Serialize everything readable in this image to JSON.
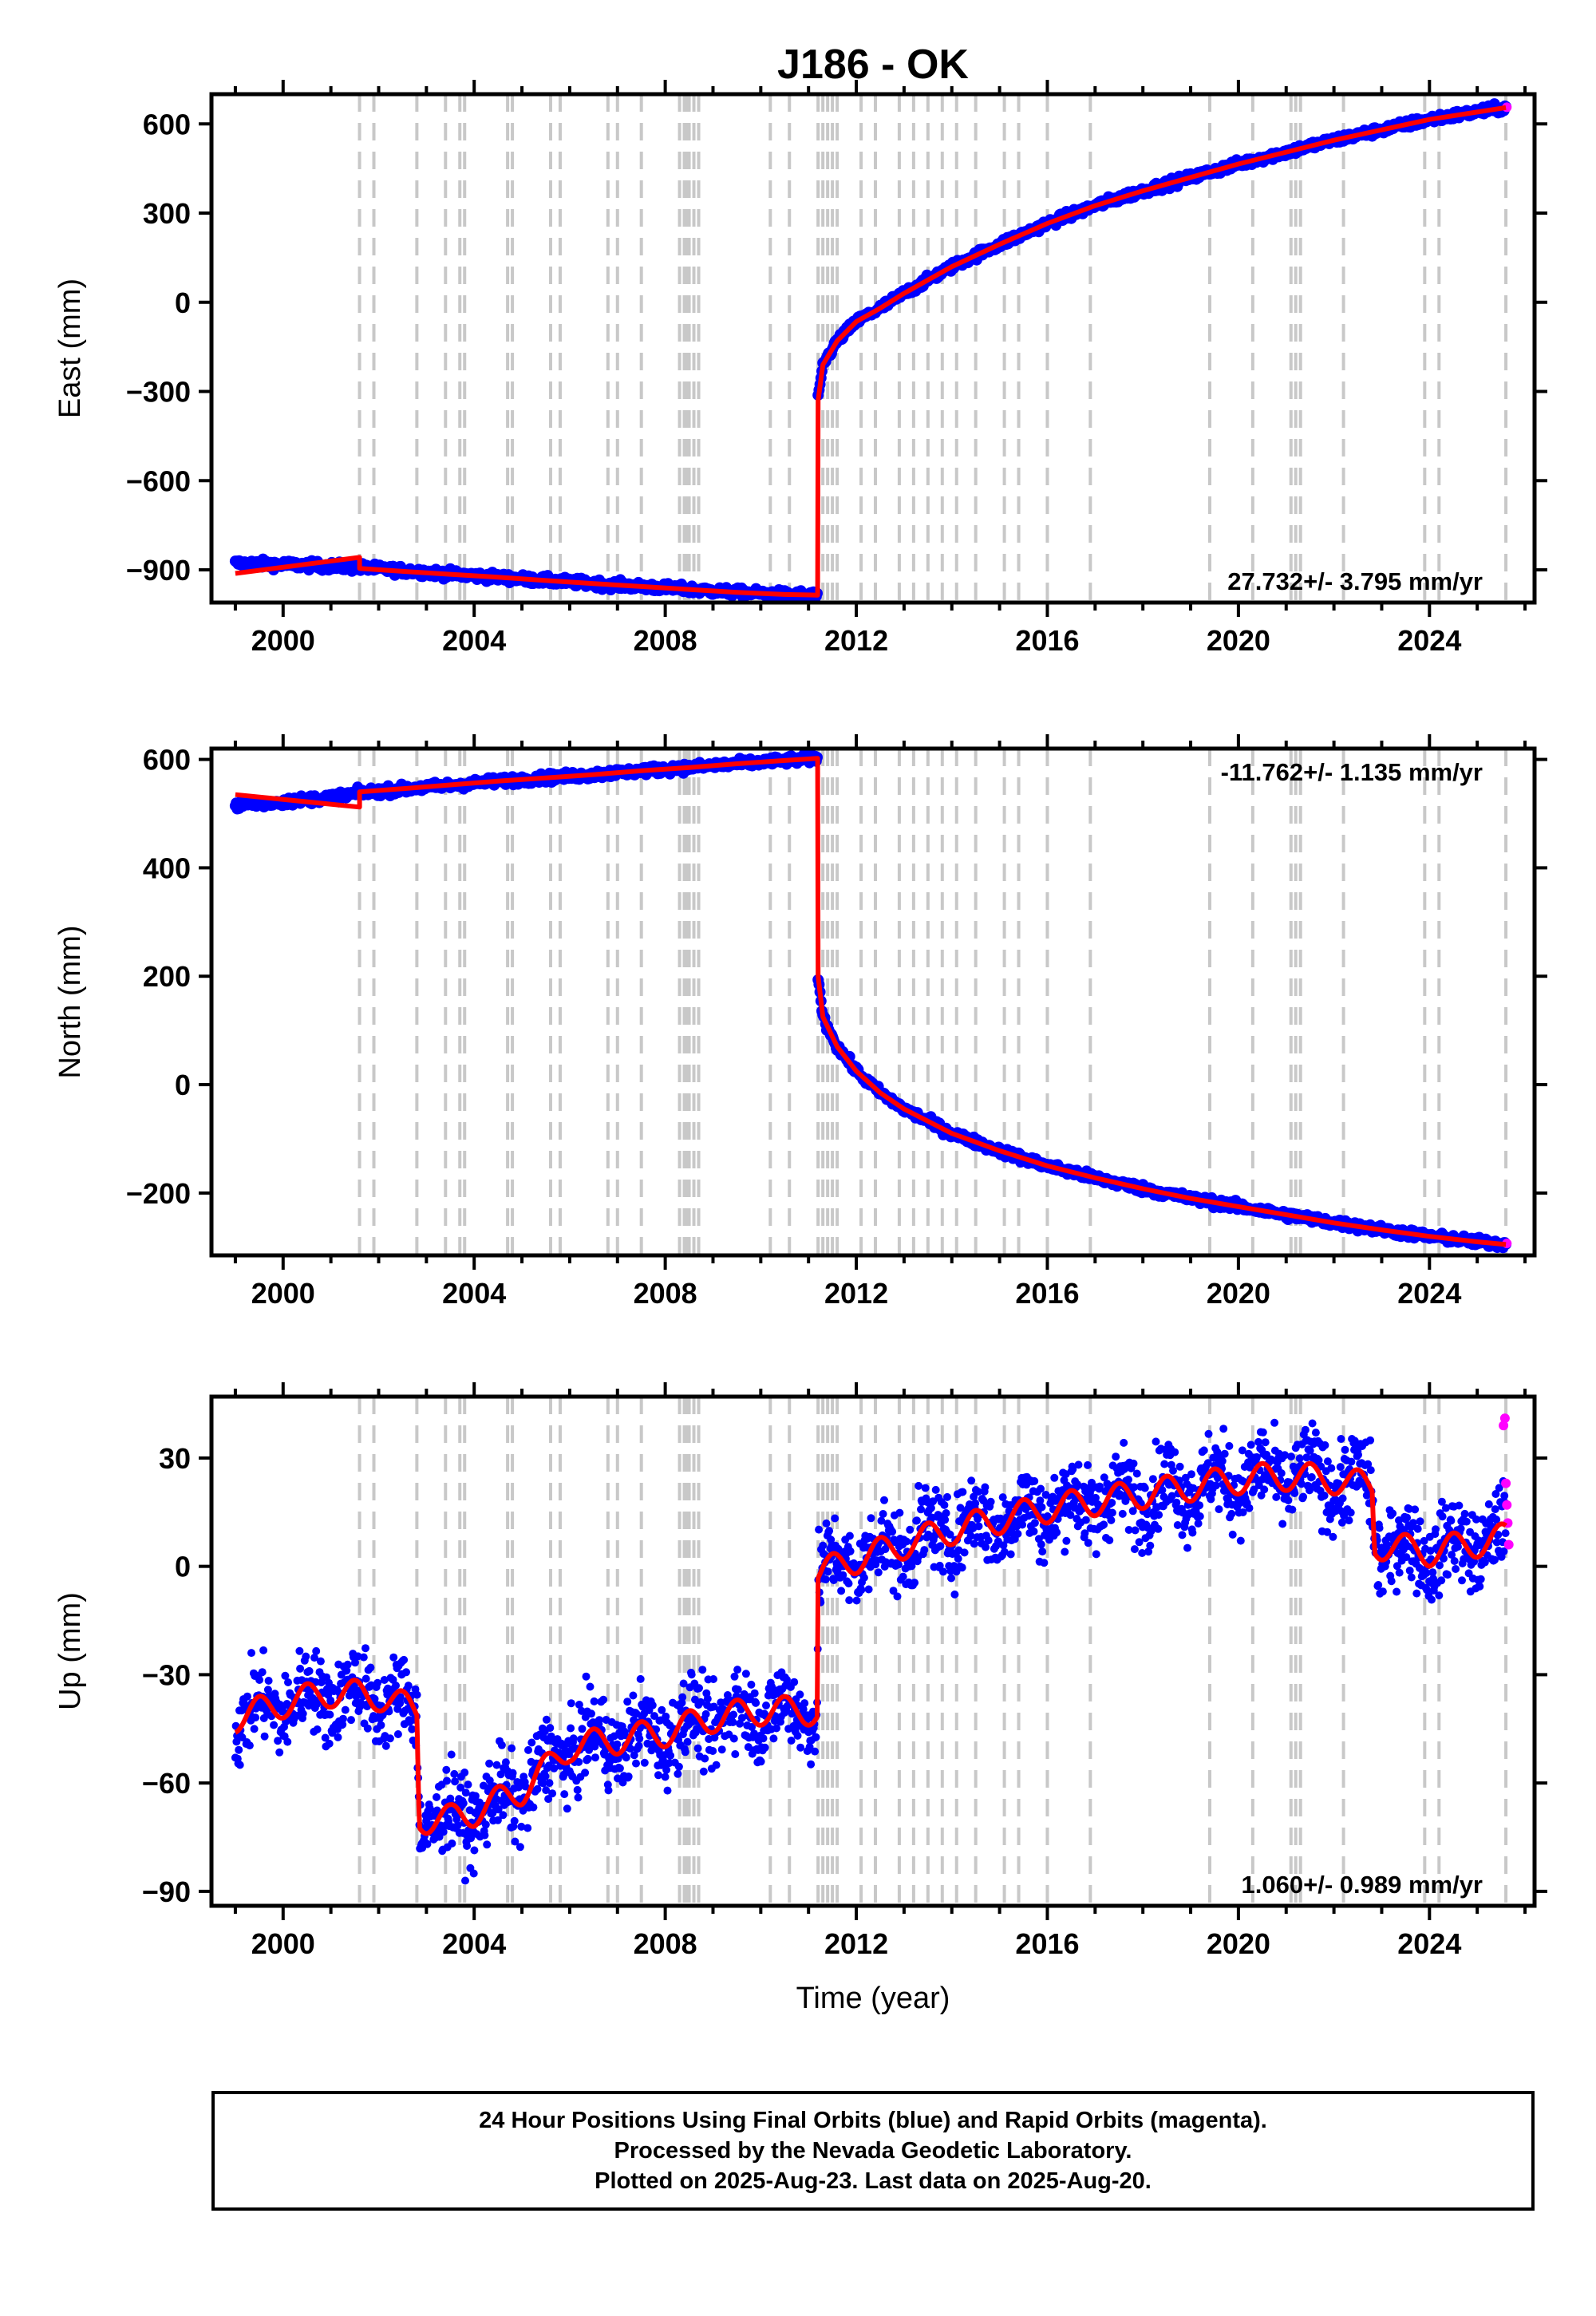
{
  "chart_data": {
    "title": "J186 - OK",
    "xlabel": "Time (year)",
    "type": "scatter",
    "x_ticks": [
      2000,
      2004,
      2008,
      2012,
      2016,
      2020,
      2024
    ],
    "xlim": [
      1998.5,
      2026.2
    ],
    "event_lines": [
      2001.6,
      2001.9,
      2002.8,
      2003.4,
      2003.7,
      2003.8,
      2004.7,
      2004.8,
      2005.6,
      2005.8,
      2006.8,
      2007.0,
      2007.5,
      2008.3,
      2008.4,
      2008.45,
      2008.5,
      2008.6,
      2008.7,
      2010.2,
      2010.6,
      2011.2,
      2011.3,
      2011.4,
      2011.5,
      2011.6,
      2012.1,
      2012.4,
      2012.9,
      2013.2,
      2013.5,
      2013.8,
      2014.1,
      2014.5,
      2015.1,
      2015.4,
      2016.0,
      2016.9,
      2019.4,
      2020.3,
      2021.1,
      2021.2,
      2021.3,
      2022.2,
      2023.9,
      2024.2,
      2025.6
    ],
    "panels": [
      {
        "ylabel": "East (mm)",
        "ylim": [
          -1010,
          700
        ],
        "y_ticks": [
          600,
          300,
          0,
          -300,
          -600,
          -900
        ],
        "y_tick_labels": [
          "600",
          "300",
          "0",
          "−300",
          "−600",
          "−900"
        ],
        "rate_text": "27.732+/- 3.795 mm/yr",
        "rate_position": "bottom-right",
        "series": [
          {
            "color": "#0000ff",
            "x": [
              1999.0,
              2000.0,
              2001.0,
              2001.6,
              2002.5,
              2003.5,
              2004.5,
              2005.5,
              2006.5,
              2007.5,
              2008.5,
              2009.5,
              2010.5,
              2011.19,
              2011.2,
              2011.3,
              2011.6,
              2012.0,
              2012.5,
              2013.0,
              2014.0,
              2015.0,
              2016.0,
              2017.0,
              2018.0,
              2019.0,
              2020.0,
              2021.0,
              2022.0,
              2023.0,
              2024.0,
              2025.0,
              2025.6
            ],
            "y": [
              -878,
              -882,
              -888,
              -892,
              -902,
              -914,
              -925,
              -936,
              -946,
              -956,
              -966,
              -976,
              -983,
              -985,
              -330,
              -210,
              -130,
              -65,
              -20,
              30,
              120,
              195,
              265,
              325,
              375,
              420,
              465,
              505,
              545,
              580,
              615,
              640,
              655
            ]
          },
          {
            "color": "#ff00ff",
            "x": [
              2025.62
            ],
            "y": [
              656
            ]
          }
        ],
        "model": {
          "color": "#ff0000",
          "x": [
            1999.0,
            2001.6,
            2001.6,
            2002.5,
            2003.5,
            2004.5,
            2005.5,
            2006.5,
            2007.5,
            2008.5,
            2009.5,
            2010.5,
            2011.19,
            2011.2,
            2011.3,
            2011.6,
            2012.0,
            2012.5,
            2013.0,
            2014.0,
            2015.0,
            2016.0,
            2017.0,
            2018.0,
            2019.0,
            2020.0,
            2021.0,
            2022.0,
            2023.0,
            2024.0,
            2025.0,
            2025.6
          ],
          "y": [
            -912,
            -858,
            -895,
            -905,
            -915,
            -925,
            -936,
            -946,
            -956,
            -966,
            -976,
            -983,
            -985,
            -330,
            -210,
            -130,
            -65,
            -20,
            30,
            120,
            195,
            265,
            325,
            375,
            420,
            465,
            505,
            545,
            580,
            615,
            640,
            655
          ]
        }
      },
      {
        "ylabel": "North (mm)",
        "ylim": [
          -315,
          620
        ],
        "y_ticks": [
          600,
          400,
          200,
          0,
          -200
        ],
        "y_tick_labels": [
          "600",
          "400",
          "200",
          "0",
          "−200"
        ],
        "rate_text": "-11.762+/- 1.135 mm/yr",
        "rate_position": "top-right",
        "series": [
          {
            "color": "#0000ff",
            "x": [
              1999.0,
              2000.0,
              2001.0,
              2001.6,
              2002.5,
              2003.5,
              2004.5,
              2005.5,
              2006.5,
              2007.5,
              2008.5,
              2009.5,
              2010.5,
              2011.19,
              2011.2,
              2011.3,
              2011.6,
              2012.0,
              2012.5,
              2013.0,
              2014.0,
              2015.0,
              2016.0,
              2017.0,
              2018.0,
              2019.0,
              2020.0,
              2021.0,
              2022.0,
              2023.0,
              2024.0,
              2025.0,
              2025.6
            ],
            "y": [
              515,
              522,
              530,
              538,
              545,
              552,
              560,
              566,
              572,
              579,
              585,
              592,
              598,
              602,
              200,
              125,
              70,
              25,
              -15,
              -45,
              -90,
              -122,
              -150,
              -172,
              -192,
              -210,
              -225,
              -240,
              -255,
              -268,
              -280,
              -290,
              -295
            ]
          },
          {
            "color": "#ff00ff",
            "x": [
              2025.62
            ],
            "y": [
              -293
            ]
          }
        ],
        "model": {
          "color": "#ff0000",
          "x": [
            1999.0,
            2001.6,
            2001.6,
            2002.5,
            2003.5,
            2004.5,
            2005.5,
            2006.5,
            2007.5,
            2008.5,
            2009.5,
            2010.5,
            2011.19,
            2011.2,
            2011.3,
            2011.6,
            2012.0,
            2012.5,
            2013.0,
            2014.0,
            2015.0,
            2016.0,
            2017.0,
            2018.0,
            2019.0,
            2020.0,
            2021.0,
            2022.0,
            2023.0,
            2024.0,
            2025.0,
            2025.6
          ],
          "y": [
            535,
            512,
            540,
            546,
            553,
            560,
            566,
            572,
            579,
            585,
            592,
            598,
            602,
            200,
            125,
            70,
            25,
            -15,
            -45,
            -90,
            -122,
            -150,
            -172,
            -192,
            -210,
            -225,
            -240,
            -255,
            -268,
            -280,
            -290,
            -295
          ]
        }
      },
      {
        "ylabel": "Up (mm)",
        "ylim": [
          -94,
          47
        ],
        "y_ticks": [
          30,
          0,
          -30,
          -60,
          -90
        ],
        "y_tick_labels": [
          "30",
          "0",
          "−30",
          "−60",
          "−90"
        ],
        "rate_text": "1.060+/- 0.989 mm/yr",
        "rate_position": "bottom-right",
        "scatter_spread": 8,
        "series": [
          {
            "color": "#0000ff",
            "x": [
              1999.0,
              2000.0,
              2001.0,
              2002.0,
              2002.8,
              2002.85,
              2003.5,
              2004.0,
              2005.0,
              2005.6,
              2006.0,
              2007.0,
              2008.0,
              2009.0,
              2010.0,
              2011.19,
              2011.2,
              2012.0,
              2013.0,
              2014.0,
              2015.0,
              2016.0,
              2017.0,
              2018.0,
              2019.0,
              2020.0,
              2021.0,
              2022.0,
              2022.8,
              2022.85,
              2024.0,
              2025.6
            ],
            "y": [
              -42,
              -38,
              -35,
              -36,
              -40,
              -70,
              -70,
              -68,
              -62,
              -55,
              -50,
              -48,
              -46,
              -42,
              -40,
              -40,
              -2,
              2,
              6,
              10,
              13,
              16,
              18,
              20,
              22,
              24,
              25,
              24,
              22,
              6,
              4,
              8
            ]
          },
          {
            "color": "#ff00ff",
            "x": [
              2025.55,
              2025.58,
              2025.6,
              2025.62,
              2025.64,
              2025.66
            ],
            "y": [
              39,
              41,
              23,
              17,
              12,
              6
            ]
          }
        ],
        "model": {
          "color": "#ff0000",
          "x": [
            1999.0,
            2000.0,
            2001.0,
            2002.0,
            2002.8,
            2002.85,
            2003.5,
            2004.0,
            2005.0,
            2005.6,
            2006.0,
            2007.0,
            2008.0,
            2009.0,
            2010.0,
            2011.19,
            2011.2,
            2012.0,
            2013.0,
            2014.0,
            2015.0,
            2016.0,
            2017.0,
            2018.0,
            2019.0,
            2020.0,
            2021.0,
            2022.0,
            2022.8,
            2022.85,
            2024.0,
            2025.6
          ],
          "y": [
            -42,
            -38,
            -35,
            -36,
            -40,
            -70,
            -70,
            -68,
            -62,
            -55,
            -50,
            -48,
            -46,
            -42,
            -40,
            -40,
            -2,
            2,
            6,
            10,
            13,
            16,
            18,
            20,
            22,
            24,
            25,
            24,
            22,
            6,
            4,
            8
          ]
        },
        "seasonal_amplitude": 4
      }
    ]
  },
  "footer": {
    "line1": "24 Hour Positions Using Final Orbits (blue) and Rapid Orbits (magenta).",
    "line2": "Processed by the Nevada Geodetic Laboratory.",
    "line3": "Plotted on 2025-Aug-23. Last data on 2025-Aug-20."
  }
}
